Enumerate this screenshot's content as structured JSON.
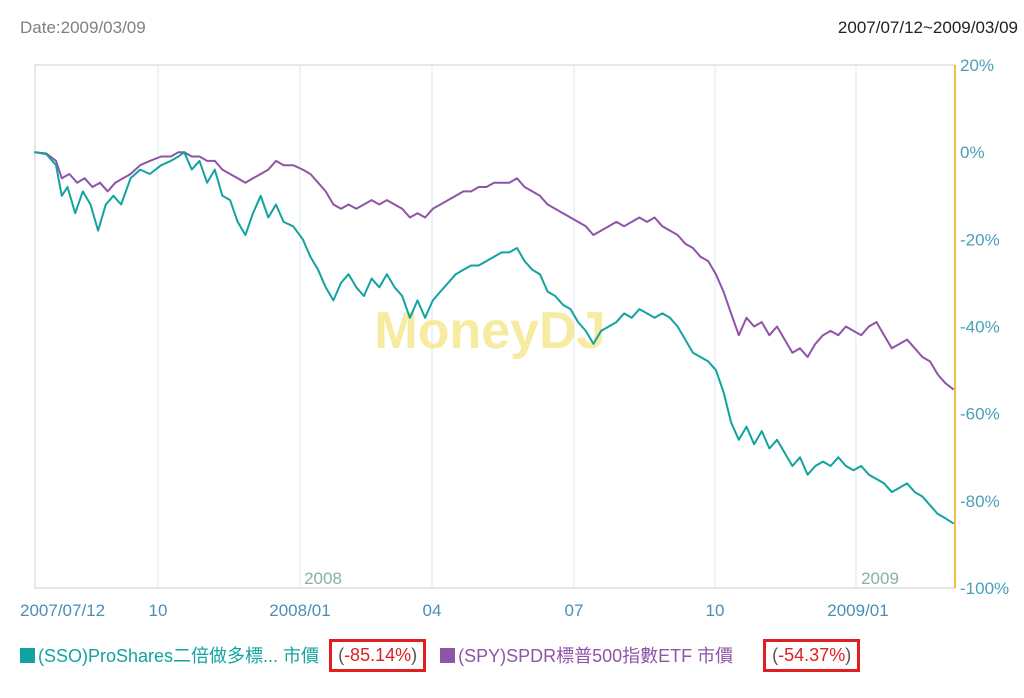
{
  "header": {
    "date_label": "Date:2009/03/09",
    "range_label": "2007/07/12~2009/03/09"
  },
  "watermark": "MoneyDJ",
  "chart_data": {
    "type": "line",
    "x_axis": {
      "ticks": [
        "2007/07/12",
        "10",
        "2008/01",
        "04",
        "07",
        "10",
        "2009/01"
      ],
      "year_labels": [
        "2008",
        "2009"
      ]
    },
    "y_axis": {
      "ticks": [
        "20%",
        "0%",
        "-20%",
        "-40%",
        "-60%",
        "-80%",
        "-100%"
      ],
      "min": -100,
      "max": 20,
      "grid": false
    },
    "series": [
      {
        "name": "(SSO)ProShares二倍做多標... 市價",
        "color": "#12a3a0",
        "final_change": "-85.14%",
        "points": [
          [
            0,
            0
          ],
          [
            0.6,
            -0.5
          ],
          [
            1.1,
            -3
          ],
          [
            1.4,
            -10
          ],
          [
            1.7,
            -8
          ],
          [
            2.1,
            -14
          ],
          [
            2.5,
            -9
          ],
          [
            2.9,
            -12
          ],
          [
            3.3,
            -18
          ],
          [
            3.7,
            -12
          ],
          [
            4.1,
            -10
          ],
          [
            4.5,
            -12
          ],
          [
            5,
            -6
          ],
          [
            5.5,
            -4
          ],
          [
            6,
            -5
          ],
          [
            6.6,
            -3
          ],
          [
            7.1,
            -2
          ],
          [
            7.5,
            -1
          ],
          [
            7.8,
            0
          ],
          [
            8.2,
            -4
          ],
          [
            8.6,
            -2
          ],
          [
            9,
            -7
          ],
          [
            9.4,
            -4
          ],
          [
            9.8,
            -10
          ],
          [
            10.2,
            -11
          ],
          [
            10.6,
            -16
          ],
          [
            11,
            -19
          ],
          [
            11.4,
            -14
          ],
          [
            11.8,
            -10
          ],
          [
            12.2,
            -15
          ],
          [
            12.6,
            -12
          ],
          [
            13,
            -16
          ],
          [
            13.5,
            -17
          ],
          [
            14,
            -20
          ],
          [
            14.4,
            -24
          ],
          [
            14.8,
            -27
          ],
          [
            15.2,
            -31
          ],
          [
            15.6,
            -34
          ],
          [
            16,
            -30
          ],
          [
            16.4,
            -28
          ],
          [
            16.8,
            -31
          ],
          [
            17.2,
            -33
          ],
          [
            17.6,
            -29
          ],
          [
            18,
            -31
          ],
          [
            18.4,
            -28
          ],
          [
            18.8,
            -31
          ],
          [
            19.2,
            -33
          ],
          [
            19.6,
            -38
          ],
          [
            20,
            -34
          ],
          [
            20.4,
            -38
          ],
          [
            20.8,
            -34
          ],
          [
            21.2,
            -32
          ],
          [
            21.6,
            -30
          ],
          [
            22,
            -28
          ],
          [
            22.4,
            -27
          ],
          [
            22.8,
            -26
          ],
          [
            23.2,
            -26
          ],
          [
            23.6,
            -25
          ],
          [
            24,
            -24
          ],
          [
            24.4,
            -23
          ],
          [
            24.8,
            -23
          ],
          [
            25.2,
            -22
          ],
          [
            25.6,
            -25
          ],
          [
            26,
            -27
          ],
          [
            26.4,
            -28
          ],
          [
            26.8,
            -32
          ],
          [
            27.2,
            -33
          ],
          [
            27.6,
            -35
          ],
          [
            28,
            -36
          ],
          [
            28.4,
            -39
          ],
          [
            28.8,
            -41
          ],
          [
            29.2,
            -44
          ],
          [
            29.6,
            -41
          ],
          [
            30,
            -40
          ],
          [
            30.4,
            -39
          ],
          [
            30.8,
            -37
          ],
          [
            31.2,
            -38
          ],
          [
            31.6,
            -36
          ],
          [
            32,
            -37
          ],
          [
            32.4,
            -38
          ],
          [
            32.8,
            -37
          ],
          [
            33.2,
            -38
          ],
          [
            33.6,
            -40
          ],
          [
            34,
            -43
          ],
          [
            34.4,
            -46
          ],
          [
            34.8,
            -47
          ],
          [
            35.2,
            -48
          ],
          [
            35.6,
            -50
          ],
          [
            36,
            -55
          ],
          [
            36.4,
            -62
          ],
          [
            36.8,
            -66
          ],
          [
            37.2,
            -63
          ],
          [
            37.6,
            -67
          ],
          [
            38,
            -64
          ],
          [
            38.4,
            -68
          ],
          [
            38.8,
            -66
          ],
          [
            39.2,
            -69
          ],
          [
            39.6,
            -72
          ],
          [
            40,
            -70
          ],
          [
            40.4,
            -74
          ],
          [
            40.8,
            -72
          ],
          [
            41.2,
            -71
          ],
          [
            41.6,
            -72
          ],
          [
            42,
            -70
          ],
          [
            42.4,
            -72
          ],
          [
            42.8,
            -73
          ],
          [
            43.2,
            -72
          ],
          [
            43.6,
            -74
          ],
          [
            44,
            -75
          ],
          [
            44.4,
            -76
          ],
          [
            44.8,
            -78
          ],
          [
            45.2,
            -77
          ],
          [
            45.6,
            -76
          ],
          [
            46,
            -78
          ],
          [
            46.4,
            -79
          ],
          [
            46.8,
            -81
          ],
          [
            47.2,
            -83
          ],
          [
            47.6,
            -84
          ],
          [
            48,
            -85.14
          ]
        ]
      },
      {
        "name": "(SPY)SPDR標普500指數ETF 市價",
        "color": "#8e54a8",
        "final_change": "-54.37%",
        "points": [
          [
            0,
            0
          ],
          [
            0.6,
            -0.3
          ],
          [
            1.1,
            -2
          ],
          [
            1.4,
            -6
          ],
          [
            1.8,
            -5
          ],
          [
            2.2,
            -7
          ],
          [
            2.6,
            -6
          ],
          [
            3,
            -8
          ],
          [
            3.4,
            -7
          ],
          [
            3.8,
            -9
          ],
          [
            4.2,
            -7
          ],
          [
            4.6,
            -6
          ],
          [
            5,
            -5
          ],
          [
            5.5,
            -3
          ],
          [
            6,
            -2
          ],
          [
            6.6,
            -1
          ],
          [
            7.1,
            -1
          ],
          [
            7.5,
            0
          ],
          [
            7.8,
            0
          ],
          [
            8.2,
            -1
          ],
          [
            8.6,
            -1
          ],
          [
            9,
            -2
          ],
          [
            9.4,
            -2
          ],
          [
            9.8,
            -4
          ],
          [
            10.2,
            -5
          ],
          [
            10.6,
            -6
          ],
          [
            11,
            -7
          ],
          [
            11.4,
            -6
          ],
          [
            11.8,
            -5
          ],
          [
            12.2,
            -4
          ],
          [
            12.6,
            -2
          ],
          [
            13,
            -3
          ],
          [
            13.5,
            -3
          ],
          [
            14,
            -4
          ],
          [
            14.4,
            -5
          ],
          [
            14.8,
            -7
          ],
          [
            15.2,
            -9
          ],
          [
            15.6,
            -12
          ],
          [
            16,
            -13
          ],
          [
            16.4,
            -12
          ],
          [
            16.8,
            -13
          ],
          [
            17.2,
            -12
          ],
          [
            17.6,
            -11
          ],
          [
            18,
            -12
          ],
          [
            18.4,
            -11
          ],
          [
            18.8,
            -12
          ],
          [
            19.2,
            -13
          ],
          [
            19.6,
            -15
          ],
          [
            20,
            -14
          ],
          [
            20.4,
            -15
          ],
          [
            20.8,
            -13
          ],
          [
            21.2,
            -12
          ],
          [
            21.6,
            -11
          ],
          [
            22,
            -10
          ],
          [
            22.4,
            -9
          ],
          [
            22.8,
            -9
          ],
          [
            23.2,
            -8
          ],
          [
            23.6,
            -8
          ],
          [
            24,
            -7
          ],
          [
            24.4,
            -7
          ],
          [
            24.8,
            -7
          ],
          [
            25.2,
            -6
          ],
          [
            25.6,
            -8
          ],
          [
            26,
            -9
          ],
          [
            26.4,
            -10
          ],
          [
            26.8,
            -12
          ],
          [
            27.2,
            -13
          ],
          [
            27.6,
            -14
          ],
          [
            28,
            -15
          ],
          [
            28.4,
            -16
          ],
          [
            28.8,
            -17
          ],
          [
            29.2,
            -19
          ],
          [
            29.6,
            -18
          ],
          [
            30,
            -17
          ],
          [
            30.4,
            -16
          ],
          [
            30.8,
            -17
          ],
          [
            31.2,
            -16
          ],
          [
            31.6,
            -15
          ],
          [
            32,
            -16
          ],
          [
            32.4,
            -15
          ],
          [
            32.8,
            -17
          ],
          [
            33.2,
            -18
          ],
          [
            33.6,
            -19
          ],
          [
            34,
            -21
          ],
          [
            34.4,
            -22
          ],
          [
            34.8,
            -24
          ],
          [
            35.2,
            -25
          ],
          [
            35.6,
            -28
          ],
          [
            36,
            -32
          ],
          [
            36.4,
            -37
          ],
          [
            36.8,
            -42
          ],
          [
            37.2,
            -38
          ],
          [
            37.6,
            -40
          ],
          [
            38,
            -39
          ],
          [
            38.4,
            -42
          ],
          [
            38.8,
            -40
          ],
          [
            39.2,
            -43
          ],
          [
            39.6,
            -46
          ],
          [
            40,
            -45
          ],
          [
            40.4,
            -47
          ],
          [
            40.8,
            -44
          ],
          [
            41.2,
            -42
          ],
          [
            41.6,
            -41
          ],
          [
            42,
            -42
          ],
          [
            42.4,
            -40
          ],
          [
            42.8,
            -41
          ],
          [
            43.2,
            -42
          ],
          [
            43.6,
            -40
          ],
          [
            44,
            -39
          ],
          [
            44.4,
            -42
          ],
          [
            44.8,
            -45
          ],
          [
            45.2,
            -44
          ],
          [
            45.6,
            -43
          ],
          [
            46,
            -45
          ],
          [
            46.4,
            -47
          ],
          [
            46.8,
            -48
          ],
          [
            47.2,
            -51
          ],
          [
            47.6,
            -53
          ],
          [
            48,
            -54.37
          ]
        ]
      }
    ]
  }
}
